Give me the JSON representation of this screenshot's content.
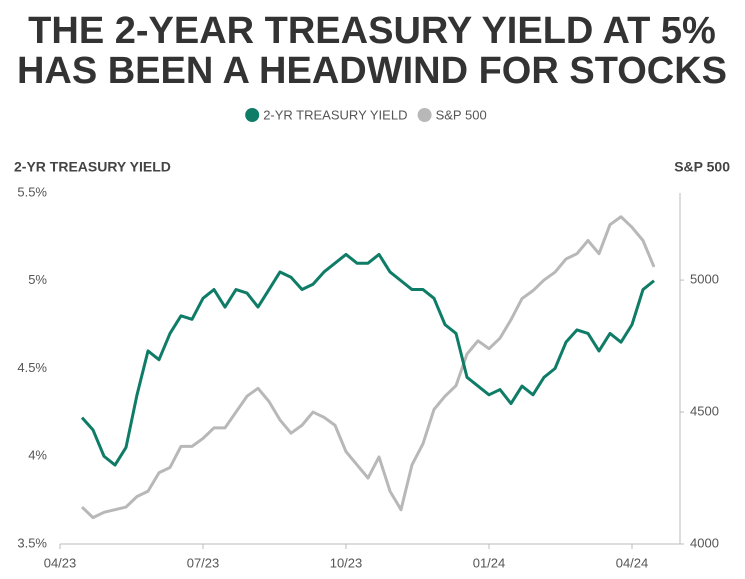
{
  "chart_data": {
    "type": "line",
    "title": [
      "THE 2-YEAR TREASURY YIELD AT 5%",
      "HAS BEEN A HEADWIND FOR STOCKS"
    ],
    "y_label": "2-YR TREASURY YIELD",
    "y2_label": "S&P 500",
    "categories": [
      "04/23",
      null,
      null,
      null,
      null,
      null,
      null,
      null,
      null,
      null,
      null,
      null,
      null,
      "07/23",
      null,
      null,
      null,
      null,
      null,
      null,
      null,
      null,
      null,
      null,
      null,
      null,
      "10/23",
      null,
      null,
      null,
      null,
      null,
      null,
      null,
      null,
      null,
      null,
      null,
      null,
      "01/24",
      null,
      null,
      null,
      null,
      null,
      null,
      null,
      null,
      null,
      null,
      null,
      null,
      "04/24",
      null,
      null
    ],
    "series": [
      {
        "name": "2-YR TREASURY YIELD",
        "color": "#0e7c66",
        "values": [
          null,
          null,
          4.22,
          4.15,
          4.0,
          3.95,
          4.05,
          4.35,
          4.6,
          4.55,
          4.7,
          4.8,
          4.78,
          4.9,
          4.95,
          4.85,
          4.95,
          4.93,
          4.85,
          4.95,
          5.05,
          5.02,
          4.95,
          4.98,
          5.05,
          5.1,
          5.15,
          5.1,
          5.1,
          5.15,
          5.05,
          5.0,
          4.95,
          4.95,
          4.9,
          4.75,
          4.7,
          4.45,
          4.4,
          4.35,
          4.38,
          4.3,
          4.4,
          4.35,
          4.45,
          4.5,
          4.65,
          4.72,
          4.7,
          4.6,
          4.7,
          4.65,
          4.75,
          4.95,
          5.0
        ]
      },
      {
        "name": "S&P 500",
        "color": "#b8b8b8",
        "axis": "y2",
        "values": [
          null,
          null,
          4140,
          4100,
          4120,
          4130,
          4140,
          4180,
          4200,
          4270,
          4290,
          4370,
          4370,
          4400,
          4440,
          4440,
          4500,
          4560,
          4590,
          4540,
          4470,
          4420,
          4450,
          4500,
          4480,
          4450,
          4350,
          4300,
          4250,
          4330,
          4200,
          4130,
          4300,
          4380,
          4510,
          4560,
          4600,
          4720,
          4770,
          4740,
          4780,
          4850,
          4930,
          4960,
          5000,
          5030,
          5080,
          5100,
          5150,
          5100,
          5210,
          5240,
          5200,
          5150,
          5050
        ]
      }
    ],
    "ylim": [
      3.5,
      5.5
    ],
    "yticks": [
      {
        "value": 3.5,
        "label": "3.5%"
      },
      {
        "value": 4,
        "label": "4%"
      },
      {
        "value": 4.5,
        "label": "4.5%"
      },
      {
        "value": 5,
        "label": "5%"
      },
      {
        "value": 5.5,
        "label": "5.5%"
      }
    ],
    "y2lim": [
      4000,
      5330
    ],
    "y2ticks": [
      4000,
      4500,
      5000
    ],
    "grid": false
  }
}
